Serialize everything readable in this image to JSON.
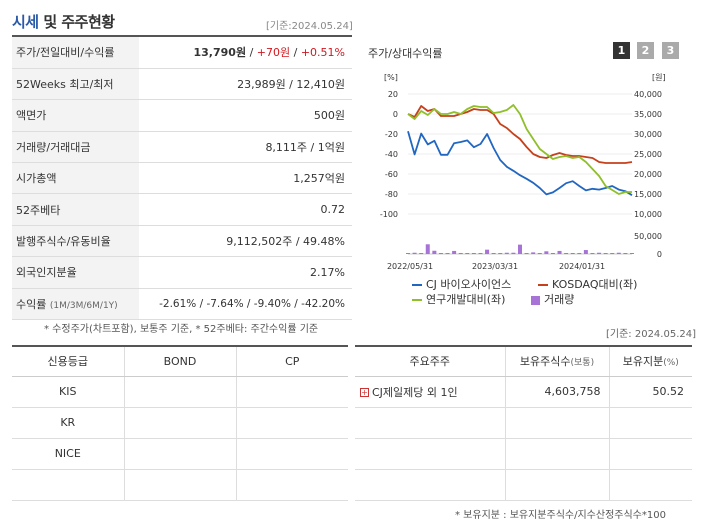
{
  "header": {
    "title_a": "시세",
    "title_b": "및 주주현황",
    "date": "[기준:2024.05.24]"
  },
  "summary": [
    {
      "label": "주가/전일대비/수익률",
      "price": "13,790원",
      "sep1": " / ",
      "change": "+70원",
      "sep2": " / ",
      "rate": "+0.51%"
    },
    {
      "label": "52Weeks 최고/최저",
      "value": "23,989원 / 12,410원"
    },
    {
      "label": "액면가",
      "value": "500원"
    },
    {
      "label": "거래량/거래대금",
      "value": "8,111주 / 1억원"
    },
    {
      "label": "시가총액",
      "value": "1,257억원"
    },
    {
      "label": "52주베타",
      "value": "0.72"
    },
    {
      "label": "발행주식수/유동비율",
      "value": "9,112,502주 / 49.48%"
    },
    {
      "label": "외국인지분율",
      "value": "2.17%"
    },
    {
      "label": "수익률",
      "sublabel": "(1M/3M/6M/1Y)",
      "value": "-2.61% / -7.64% / -9.40% / -42.20%"
    }
  ],
  "note_summary": "* 수정주가(차트포함), 보통주 기준, * 52주베타: 주간수익률 기준",
  "chart_panel": {
    "title": "주가/상대수익률",
    "pages": [
      "1",
      "2",
      "3"
    ]
  },
  "chart_data": {
    "type": "line",
    "x_ticks": [
      "2022/05/31",
      "2023/03/31",
      "2024/01/31"
    ],
    "left_unit": "[%]",
    "right_unit": "[원]",
    "left_ticks": [
      "20",
      "0",
      "-20",
      "-40",
      "-60",
      "-80",
      "-100"
    ],
    "right_ticks": [
      "40,000",
      "35,000",
      "30,000",
      "25,000",
      "20,000",
      "15,000",
      "10,000"
    ],
    "volume_ticks": [
      "50,000",
      "0"
    ],
    "ylim_left": [
      -100,
      20
    ],
    "ylim_right": [
      10000,
      40000
    ],
    "volume_max": 50000,
    "series": [
      {
        "name": "CJ 바이오사이언스",
        "axis": "right",
        "color": "#2166c1",
        "values": [
          30700,
          24900,
          30100,
          27400,
          28300,
          24800,
          24800,
          27700,
          28000,
          28400,
          26700,
          27500,
          30000,
          26500,
          23500,
          21800,
          20800,
          19700,
          18800,
          17800,
          16500,
          14900,
          15400,
          16500,
          17700,
          18200,
          17000,
          15900,
          16300,
          16100,
          16500,
          17000,
          16100,
          15700,
          14700
        ]
      },
      {
        "name": "KOSDAQ대비(좌)",
        "axis": "left",
        "color": "#c6401b",
        "values": [
          0,
          -3,
          8,
          3,
          5,
          -2,
          -2,
          -2,
          0,
          2,
          5,
          4,
          4,
          0,
          -10,
          -14,
          -20,
          -25,
          -33,
          -40,
          -43,
          -44,
          -41,
          -39,
          -41,
          -42,
          -42,
          -43,
          -44,
          -48,
          -49,
          -49,
          -49,
          -49,
          -48
        ]
      },
      {
        "name": "연구개발대비(좌)",
        "axis": "left",
        "color": "#8fbf2a",
        "values": [
          0,
          -5,
          3,
          -1,
          5,
          0,
          0,
          2,
          0,
          5,
          8,
          7,
          7,
          1,
          2,
          4,
          9,
          0,
          -15,
          -25,
          -35,
          -40,
          -45,
          -43,
          -42,
          -44,
          -43,
          -48,
          -55,
          -62,
          -72,
          -76,
          -80,
          -78,
          -78
        ]
      }
    ],
    "volume": {
      "name": "거래량",
      "color": "#a773d6",
      "values": [
        1200,
        3500,
        800,
        27000,
        9000,
        1500,
        1500,
        8500,
        1200,
        1200,
        2000,
        1500,
        12000,
        1000,
        2000,
        3500,
        3500,
        26000,
        2000,
        4500,
        1000,
        7500,
        1000,
        8500,
        2000,
        2000,
        2000,
        11000,
        1500,
        3500,
        1500,
        2000,
        3500,
        1500,
        2000
      ]
    }
  },
  "legend": [
    "CJ 바이오사이언스",
    "KOSDAQ대비(좌)",
    "연구개발대비(좌)",
    "거래량"
  ],
  "date_right": "[기준: 2024.05.24]",
  "credit": {
    "headers": [
      "신용등급",
      "BOND",
      "CP"
    ],
    "rows": [
      "KIS",
      "KR",
      "NICE",
      ""
    ]
  },
  "holders": {
    "headers": [
      "주요주주",
      "보유주식수",
      "(보통)",
      "보유지분",
      "(%)"
    ],
    "rows": [
      {
        "name": "CJ제일제당 외 1인",
        "shares": "4,603,758",
        "pct": "50.52"
      }
    ]
  },
  "note_holders": "* 보유지분 : 보유지분주식수/지수산정주식수*100"
}
